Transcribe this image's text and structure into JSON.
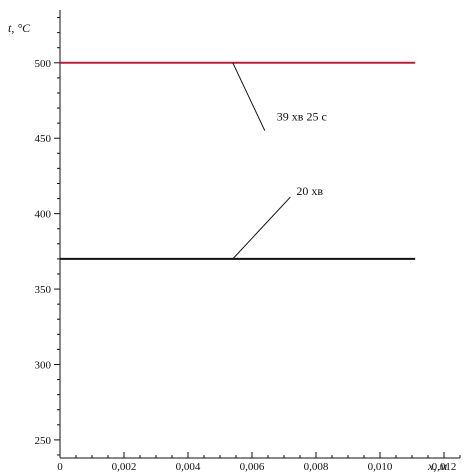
{
  "chart_data": {
    "type": "line",
    "title": "",
    "xlabel": "x, м",
    "ylabel": "t, °C",
    "xlim": [
      0,
      0.0125
    ],
    "ylim": [
      238,
      535
    ],
    "xticks": [
      0,
      0.002,
      0.004,
      0.006,
      0.008,
      0.01,
      0.012
    ],
    "xtick_labels": [
      "0",
      "0,002",
      "0,004",
      "0,006",
      "0,008",
      "0,010",
      "0,012"
    ],
    "yticks": [
      250,
      300,
      350,
      400,
      450,
      500
    ],
    "ytick_labels": [
      "250",
      "300",
      "350",
      "400",
      "450",
      "500"
    ],
    "grid": false,
    "legend": "none",
    "series": [
      {
        "x": [
          0,
          0.0111
        ],
        "y": [
          500,
          500
        ],
        "color": "#b5203c"
      },
      {
        "x": [
          0,
          0.0111
        ],
        "y": [
          370,
          370
        ],
        "color": "#111111"
      }
    ],
    "annotations": [
      {
        "text": "39 хв 25 с",
        "from": [
          0.0054,
          500
        ],
        "to": [
          0.0064,
          455
        ]
      },
      {
        "text": "20 хв",
        "from": [
          0.0054,
          370
        ],
        "to": [
          0.0072,
          411
        ]
      }
    ]
  }
}
